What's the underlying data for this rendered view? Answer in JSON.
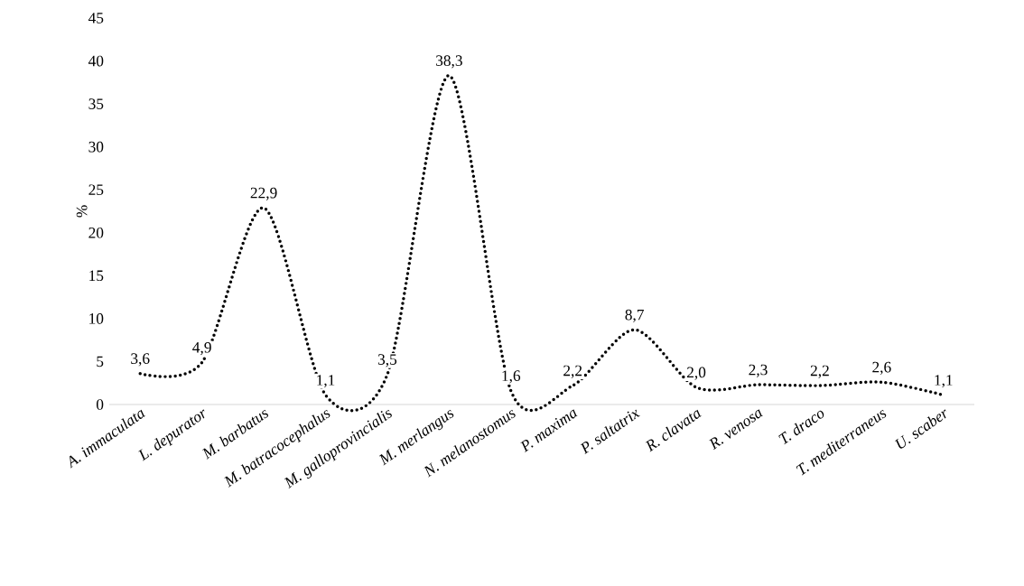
{
  "chart_data": {
    "type": "line",
    "ylabel": "%",
    "categories": [
      "A. immaculata",
      "L. depurator",
      "M. barbatus",
      "M. batracocephalus",
      "M. galloprovincialis",
      "M. merlangus",
      "N. melanostomus",
      "P. maxima",
      "P. saltatrix",
      "R. clavata",
      "R. venosa",
      "T. draco",
      "T. mediterraneus",
      "U. scaber"
    ],
    "values": [
      3.6,
      4.9,
      22.9,
      1.1,
      3.5,
      38.3,
      1.6,
      2.2,
      8.7,
      2.0,
      2.3,
      2.2,
      2.6,
      1.1
    ],
    "value_labels": [
      "3,6",
      "4,9",
      "22,9",
      "1,1",
      "3,5",
      "38,3",
      "1,6",
      "2,2",
      "8,7",
      "2,0",
      "2,3",
      "2,2",
      "2,6",
      "1,1"
    ],
    "color": "#000000",
    "line_style": "dotted",
    "marker": "none",
    "ylim": [
      0,
      45
    ],
    "yticks": [
      0,
      5,
      10,
      15,
      20,
      25,
      30,
      35,
      40,
      45
    ]
  }
}
